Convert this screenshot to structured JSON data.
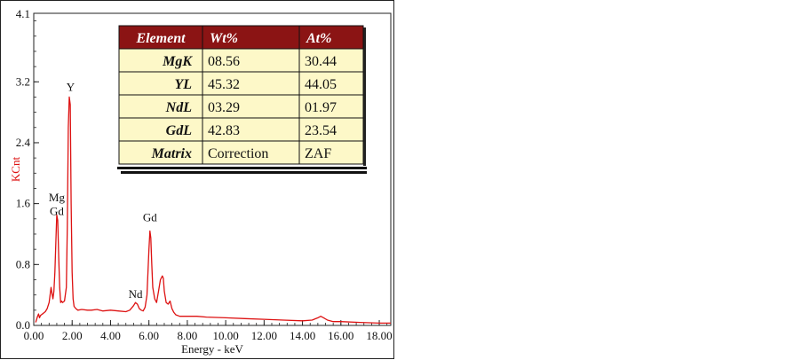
{
  "chart_data": {
    "type": "line",
    "xlabel": "Energy - keV",
    "ylabel": "KCnt",
    "xlim": [
      0,
      18.6
    ],
    "ylim": [
      0,
      4.1
    ],
    "x_ticks": [
      "0.00",
      "2.00",
      "4.00",
      "6.00",
      "8.00",
      "10.00",
      "12.00",
      "14.00",
      "16.00",
      "18.00"
    ],
    "x_tick_values": [
      0,
      2,
      4,
      6,
      8,
      10,
      12,
      14,
      16,
      18
    ],
    "y_ticks": [
      "0.0",
      "0.8",
      "1.6",
      "2.4",
      "3.2",
      "4.1"
    ],
    "y_tick_values": [
      0,
      0.8,
      1.6,
      2.4,
      3.2,
      4.1
    ],
    "grid": false,
    "series": [
      {
        "color": "#dd1111",
        "x": [
          0.1,
          0.2,
          0.25,
          0.3,
          0.35,
          0.4,
          0.5,
          0.6,
          0.7,
          0.8,
          0.85,
          0.9,
          0.95,
          1.0,
          1.05,
          1.1,
          1.15,
          1.2,
          1.25,
          1.3,
          1.35,
          1.4,
          1.45,
          1.5,
          1.6,
          1.7,
          1.75,
          1.8,
          1.85,
          1.9,
          1.95,
          2.0,
          2.05,
          2.1,
          2.2,
          2.3,
          2.5,
          2.8,
          3.0,
          3.3,
          3.6,
          4.0,
          4.4,
          4.8,
          5.0,
          5.2,
          5.3,
          5.4,
          5.5,
          5.6,
          5.7,
          5.8,
          5.9,
          5.95,
          6.0,
          6.05,
          6.1,
          6.15,
          6.2,
          6.3,
          6.4,
          6.5,
          6.6,
          6.7,
          6.75,
          6.8,
          6.9,
          7.0,
          7.1,
          7.2,
          7.3,
          7.4,
          7.6,
          8.0,
          8.5,
          9.0,
          10.0,
          11.0,
          12.0,
          13.0,
          14.0,
          14.5,
          14.8,
          14.95,
          15.1,
          15.3,
          15.6,
          16.0,
          17.0,
          18.0,
          18.6
        ],
        "y": [
          0.04,
          0.12,
          0.15,
          0.1,
          0.13,
          0.14,
          0.16,
          0.18,
          0.22,
          0.3,
          0.4,
          0.5,
          0.42,
          0.35,
          0.45,
          0.7,
          1.1,
          1.45,
          1.38,
          0.9,
          0.5,
          0.3,
          0.32,
          0.3,
          0.32,
          0.5,
          1.3,
          2.6,
          3.0,
          2.9,
          1.6,
          0.7,
          0.35,
          0.25,
          0.22,
          0.2,
          0.21,
          0.2,
          0.2,
          0.21,
          0.19,
          0.2,
          0.19,
          0.18,
          0.2,
          0.26,
          0.3,
          0.28,
          0.22,
          0.2,
          0.19,
          0.24,
          0.4,
          0.7,
          1.0,
          1.24,
          1.15,
          0.8,
          0.5,
          0.35,
          0.3,
          0.45,
          0.6,
          0.65,
          0.62,
          0.45,
          0.3,
          0.28,
          0.32,
          0.22,
          0.17,
          0.14,
          0.12,
          0.12,
          0.12,
          0.11,
          0.1,
          0.09,
          0.08,
          0.07,
          0.06,
          0.07,
          0.1,
          0.12,
          0.1,
          0.07,
          0.05,
          0.05,
          0.04,
          0.03,
          0.03
        ]
      }
    ],
    "annotations": [
      {
        "text": "Y",
        "x": 1.92,
        "y": 3.08
      },
      {
        "text": "Mg",
        "x": 1.2,
        "y": 1.63
      },
      {
        "text": "Gd",
        "x": 1.2,
        "y": 1.45
      },
      {
        "text": "Gd",
        "x": 6.05,
        "y": 1.37
      },
      {
        "text": "Nd",
        "x": 5.3,
        "y": 0.36
      }
    ],
    "table": {
      "headers": [
        "Element",
        "Wt%",
        "At%"
      ],
      "rows": [
        [
          "MgK",
          "08.56",
          "30.44"
        ],
        [
          "YL",
          "45.32",
          "44.05"
        ],
        [
          "NdL",
          "03.29",
          "01.97"
        ],
        [
          "GdL",
          "42.83",
          "23.54"
        ],
        [
          "Matrix",
          "Correction",
          "ZAF"
        ]
      ],
      "header_color": "#8b1414",
      "cell_color": "#fdf8c8"
    }
  }
}
